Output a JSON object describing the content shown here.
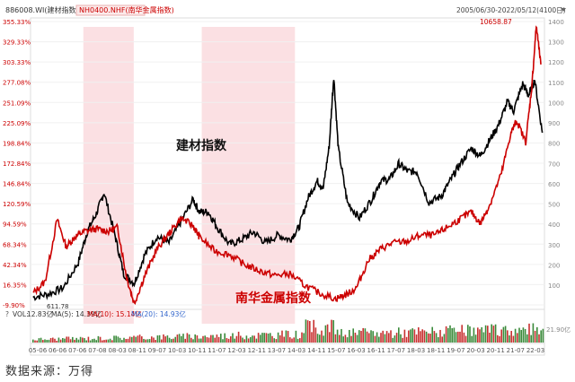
{
  "header": {
    "left_code": "886008.WI(建材指数)",
    "legend_red": "NH0400.NHF(南华金属指数)",
    "date_range": "2005/06/30-2022/05/12(4100日)",
    "menu_icon": "triangle-down-icon"
  },
  "source": "数据来源：万得",
  "colors": {
    "black_series": "#000000",
    "red_series": "#cc0000",
    "shade": "#fbe0e3",
    "left_axis_text": "#cc0000",
    "right_axis_text": "#888888",
    "vol_green": "#3a8a3a",
    "vol_red": "#c83030",
    "ma_blue": "#3366cc"
  },
  "volume": {
    "label": "VOL:",
    "vol": "12.83亿",
    "ma5": "MA(5): 14.39亿",
    "ma10": "MA(10): 15.14亿",
    "ma20": "MA(20): 14.93亿",
    "right_label": "21.90亿"
  },
  "chart_data": [
    {
      "type": "line",
      "title": "",
      "annotations": {
        "black_label": "建材指数",
        "red_label": "南华金属指数",
        "max_label": "10658.87",
        "min_label": "611.78"
      },
      "left_axis_ticks": [
        "355.33%",
        "329.33%",
        "303.33%",
        "277.08%",
        "251.09%",
        "225.09%",
        "198.84%",
        "172.84%",
        "146.84%",
        "120.59%",
        "94.59%",
        "68.34%",
        "42.34%",
        "16.35%",
        "-9.90%"
      ],
      "right_axis_ticks": [
        "1400",
        "1300",
        "1200",
        "1100",
        "1000",
        "900",
        "800",
        "700",
        "600",
        "500",
        "400",
        "300",
        "200",
        "100"
      ],
      "x_ticks": [
        "05-06",
        "06-06",
        "07-06",
        "07-08",
        "08-03",
        "08-11",
        "09-07",
        "10-03",
        "10-11",
        "11-07",
        "12-03",
        "12-11",
        "13-07",
        "14-03",
        "14-11",
        "15-07",
        "16-03",
        "16-11",
        "17-07",
        "18-03",
        "18-11",
        "19-07",
        "20-03",
        "20-11",
        "21-07",
        "22-03"
      ],
      "shaded_ranges": [
        [
          "07-03",
          "08-11"
        ],
        [
          "11-02",
          "14-03"
        ]
      ],
      "series": [
        {
          "name": "建材指数",
          "x": [
            2005.5,
            2006.0,
            2006.5,
            2007.0,
            2007.3,
            2007.6,
            2007.85,
            2008.2,
            2008.5,
            2008.85,
            2009.2,
            2009.6,
            2010.0,
            2010.4,
            2010.8,
            2011.0,
            2011.3,
            2011.6,
            2012.0,
            2012.4,
            2012.8,
            2013.2,
            2013.6,
            2014.0,
            2014.3,
            2014.6,
            2014.9,
            2015.1,
            2015.3,
            2015.45,
            2015.6,
            2015.9,
            2016.3,
            2016.7,
            2017.0,
            2017.3,
            2017.6,
            2017.9,
            2018.2,
            2018.6,
            2019.0,
            2019.3,
            2019.6,
            2020.0,
            2020.3,
            2020.6,
            2020.9,
            2021.2,
            2021.4,
            2021.7,
            2021.9,
            2022.1,
            2022.35
          ],
          "values": [
            0,
            4,
            12,
            45,
            85,
            108,
            135,
            82,
            30,
            18,
            55,
            78,
            70,
            98,
            126,
            110,
            110,
            90,
            68,
            74,
            84,
            70,
            80,
            74,
            90,
            128,
            150,
            140,
            195,
            285,
            192,
            122,
            102,
            126,
            150,
            152,
            172,
            162,
            162,
            122,
            130,
            150,
            170,
            192,
            182,
            202,
            222,
            252,
            240,
            275,
            260,
            280,
            212
          ]
        },
        {
          "name": "南华金属指数",
          "x": [
            2005.5,
            2005.9,
            2006.3,
            2006.6,
            2006.9,
            2007.2,
            2007.6,
            2008.0,
            2008.3,
            2008.6,
            2008.85,
            2009.2,
            2009.6,
            2010.0,
            2010.4,
            2010.8,
            2011.0,
            2011.5,
            2012.0,
            2012.5,
            2013.0,
            2013.5,
            2014.0,
            2014.5,
            2015.0,
            2015.5,
            2015.9,
            2016.2,
            2016.6,
            2017.0,
            2017.4,
            2017.9,
            2018.3,
            2018.8,
            2019.2,
            2019.6,
            2020.0,
            2020.3,
            2020.6,
            2021.0,
            2021.3,
            2021.5,
            2021.8,
            2022.0,
            2022.15,
            2022.3
          ],
          "values": [
            5,
            20,
            100,
            65,
            78,
            85,
            88,
            85,
            90,
            25,
            -8,
            28,
            62,
            82,
            102,
            92,
            78,
            60,
            55,
            42,
            34,
            28,
            30,
            15,
            5,
            -2,
            4,
            12,
            48,
            62,
            70,
            72,
            80,
            80,
            90,
            100,
            110,
            95,
            118,
            160,
            210,
            228,
            200,
            270,
            350,
            300
          ]
        }
      ]
    }
  ]
}
